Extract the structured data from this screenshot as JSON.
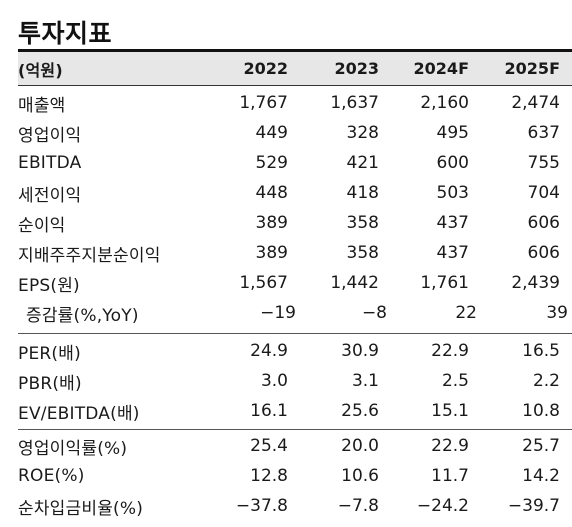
{
  "title": "투자지표",
  "header": {
    "unit": "(억원)",
    "years": [
      "2022",
      "2023",
      "2024F",
      "2025F"
    ]
  },
  "rows": [
    {
      "label": "매출액",
      "values": [
        "1,767",
        "1,637",
        "2,160",
        "2,474"
      ]
    },
    {
      "label": "영업이익",
      "values": [
        "449",
        "328",
        "495",
        "637"
      ]
    },
    {
      "label": "EBITDA",
      "values": [
        "529",
        "421",
        "600",
        "755"
      ]
    },
    {
      "label": "세전이익",
      "values": [
        "448",
        "418",
        "503",
        "704"
      ]
    },
    {
      "label": "순이익",
      "values": [
        "389",
        "358",
        "437",
        "606"
      ]
    },
    {
      "label": "지배주주지분순이익",
      "values": [
        "389",
        "358",
        "437",
        "606"
      ]
    },
    {
      "label": "EPS(원)",
      "values": [
        "1,567",
        "1,442",
        "1,761",
        "2,439"
      ]
    },
    {
      "label": "증감률(%,YoY)",
      "values": [
        "−19",
        "−8",
        "22",
        "39"
      ]
    },
    {
      "label": "PER(배)",
      "values": [
        "24.9",
        "30.9",
        "22.9",
        "16.5"
      ]
    },
    {
      "label": "PBR(배)",
      "values": [
        "3.0",
        "3.1",
        "2.5",
        "2.2"
      ]
    },
    {
      "label": "EV/EBITDA(배)",
      "values": [
        "16.1",
        "25.6",
        "15.1",
        "10.8"
      ]
    },
    {
      "label": "영업이익률(%)",
      "values": [
        "25.4",
        "20.0",
        "22.9",
        "25.7"
      ]
    },
    {
      "label": "ROE(%)",
      "values": [
        "12.8",
        "10.6",
        "11.7",
        "14.2"
      ]
    },
    {
      "label": "순차입금비율(%)",
      "values": [
        "−37.8",
        "−7.8",
        "−24.2",
        "−39.7"
      ]
    }
  ]
}
